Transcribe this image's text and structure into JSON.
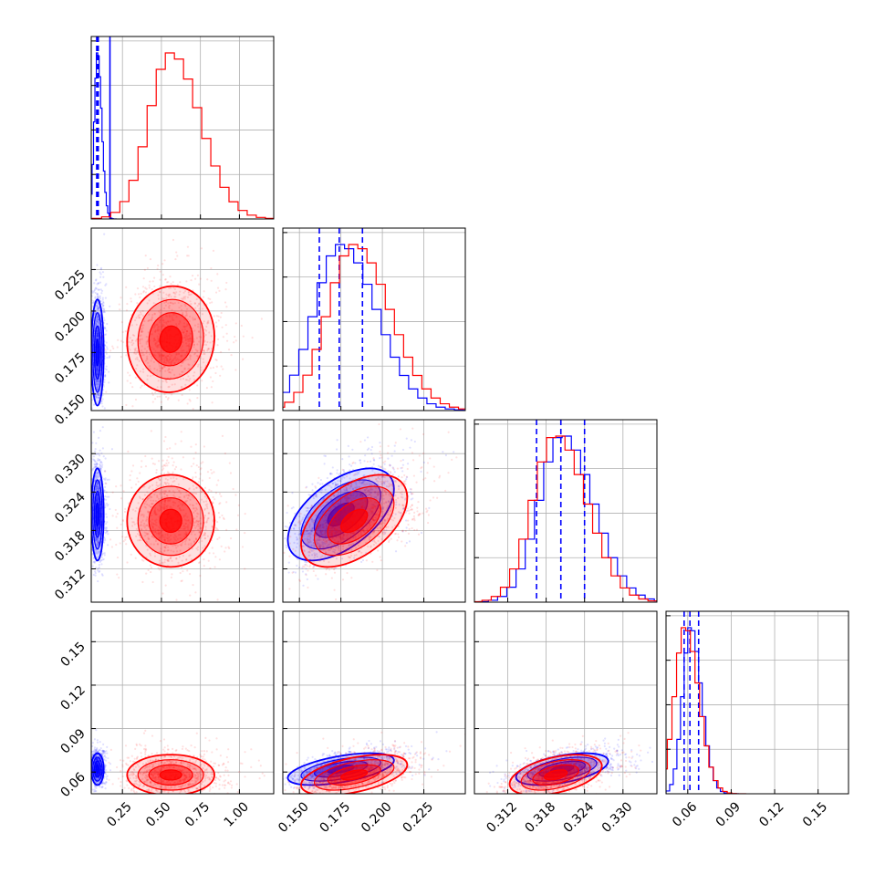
{
  "colors": {
    "series_a": "#0000ff",
    "series_b": "#ff0000",
    "grid": "#b0b0b0",
    "frame": "#000000"
  },
  "chart_data": {
    "type": "corner-plot",
    "title": "",
    "grid": true,
    "parameters": [
      {
        "range": [
          0.05,
          1.22
        ],
        "ticks": [
          0.25,
          0.5,
          0.75,
          1.0
        ],
        "tick_labels": [
          "0.25",
          "0.50",
          "0.75",
          "1.00"
        ]
      },
      {
        "range": [
          0.14,
          0.25
        ],
        "ticks": [
          0.15,
          0.175,
          0.2,
          0.225
        ],
        "tick_labels": [
          "0.150",
          "0.175",
          "0.200",
          "0.225"
        ]
      },
      {
        "range": [
          0.3068,
          0.3353
        ],
        "ticks": [
          0.312,
          0.318,
          0.324,
          0.33
        ],
        "tick_labels": [
          "0.312",
          "0.318",
          "0.324",
          "0.330"
        ]
      },
      {
        "range": [
          0.045,
          0.171
        ],
        "ticks": [
          0.06,
          0.09,
          0.12,
          0.15
        ],
        "tick_labels": [
          "0.06",
          "0.09",
          "0.12",
          "0.15"
        ]
      }
    ],
    "series": [
      {
        "color": "#0000ff",
        "means": [
          0.09,
          0.175,
          0.3205,
          0.062
        ],
        "sigmas": [
          0.02,
          0.016,
          0.0036,
          0.0055
        ],
        "correlations": [
          [
            0,
            1,
            0.0
          ],
          [
            0,
            2,
            0.0
          ],
          [
            0,
            3,
            0.0
          ],
          [
            1,
            2,
            0.55
          ],
          [
            1,
            3,
            0.55
          ],
          [
            2,
            3,
            0.5
          ]
        ],
        "quantiles": [
          [
            0.085,
            0.09,
            0.095
          ],
          [
            0.162,
            0.174,
            0.188
          ],
          [
            0.3165,
            0.3203,
            0.324
          ],
          [
            0.0575,
            0.0615,
            0.0675
          ]
        ],
        "truth_line": 0.17
      },
      {
        "color": "#ff0000",
        "means": [
          0.56,
          0.183,
          0.3195,
          0.058
        ],
        "sigmas": [
          0.14,
          0.016,
          0.0036,
          0.007
        ],
        "correlations": [
          [
            0,
            1,
            0.05
          ],
          [
            0,
            2,
            0.0
          ],
          [
            0,
            3,
            0.0
          ],
          [
            1,
            2,
            0.5
          ],
          [
            1,
            3,
            0.5
          ],
          [
            2,
            3,
            0.45
          ]
        ],
        "quantiles": null
      }
    ]
  }
}
